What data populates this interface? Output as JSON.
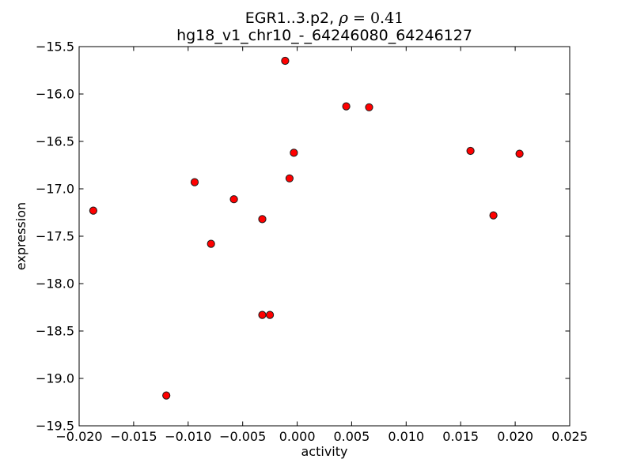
{
  "figure": {
    "background": "#ffffff",
    "frame_color": "#000000"
  },
  "chart_data": {
    "type": "scatter",
    "title_prefix": "EGR1..3.p2, ",
    "title_rho_symbol": "ρ",
    "title_rho_value": " = 0.41",
    "title_full": "EGR1..3.p2, ρ = 0.41",
    "subtitle": "hg18_v1_chr10_-_64246080_64246127",
    "xlabel": "activity",
    "ylabel": "expression",
    "xlim": [
      -0.02,
      0.025
    ],
    "ylim": [
      -19.5,
      -15.5
    ],
    "xticks": [
      -0.02,
      -0.015,
      -0.01,
      -0.005,
      0.0,
      0.005,
      0.01,
      0.015,
      0.02,
      0.025
    ],
    "xtick_labels": [
      "−0.020",
      "−0.015",
      "−0.010",
      "−0.005",
      "0.000",
      "0.005",
      "0.010",
      "0.015",
      "0.020",
      "0.025"
    ],
    "yticks": [
      -15.5,
      -16.0,
      -16.5,
      -17.0,
      -17.5,
      -18.0,
      -18.5,
      -19.0,
      -19.5
    ],
    "ytick_labels": [
      "−15.5",
      "−16.0",
      "−16.5",
      "−17.0",
      "−17.5",
      "−18.0",
      "−18.5",
      "−19.0",
      "−19.5"
    ],
    "grid": false,
    "legend": null,
    "marker": {
      "shape": "circle",
      "fill": "#ff0000",
      "edge": "#1a1a1a",
      "radius": 4.6
    },
    "points": [
      [
        -0.0187,
        -17.23
      ],
      [
        -0.012,
        -19.18
      ],
      [
        -0.0094,
        -16.93
      ],
      [
        -0.0079,
        -17.58
      ],
      [
        -0.0058,
        -17.11
      ],
      [
        -0.0032,
        -17.32
      ],
      [
        -0.0032,
        -18.33
      ],
      [
        -0.0025,
        -18.33
      ],
      [
        -0.0011,
        -15.65
      ],
      [
        -0.0007,
        -16.89
      ],
      [
        -0.0003,
        -16.62
      ],
      [
        0.0045,
        -16.13
      ],
      [
        0.0066,
        -16.14
      ],
      [
        0.0159,
        -16.6
      ],
      [
        0.018,
        -17.28
      ],
      [
        0.0204,
        -16.63
      ]
    ]
  }
}
